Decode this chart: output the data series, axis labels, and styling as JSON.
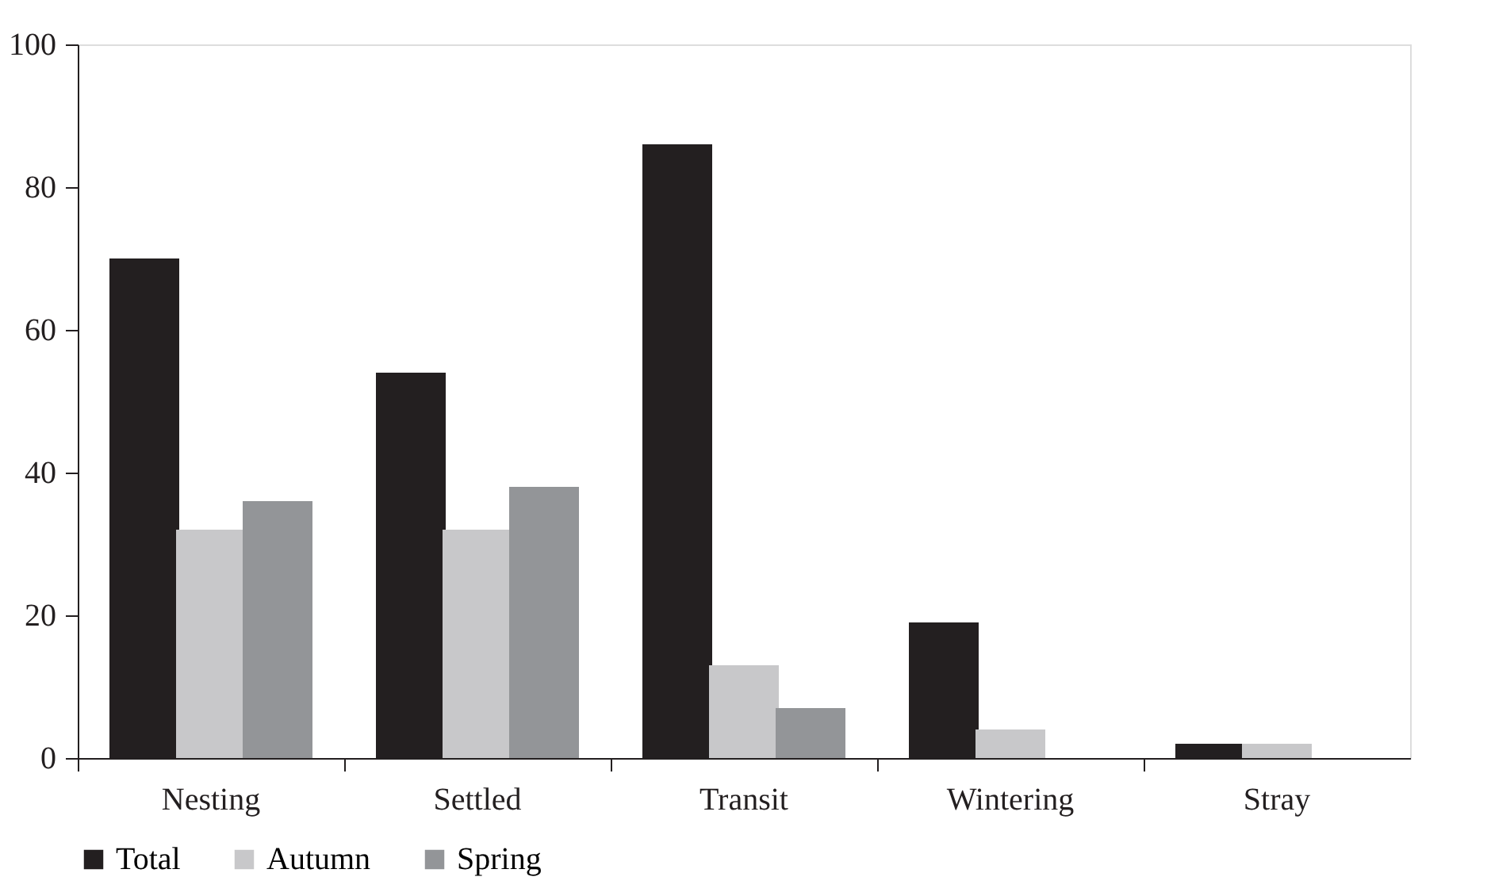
{
  "chart_data": {
    "type": "bar",
    "categories": [
      "Nesting",
      "Settled",
      "Transit",
      "Wintering",
      "Stray"
    ],
    "series": [
      {
        "name": "Total",
        "color": "#231f20",
        "values": [
          70,
          54,
          86,
          19,
          2
        ]
      },
      {
        "name": "Autumn",
        "color": "#c8c8ca",
        "values": [
          32,
          32,
          13,
          4,
          2
        ]
      },
      {
        "name": "Spring",
        "color": "#939598",
        "values": [
          36,
          38,
          7,
          0,
          0
        ]
      }
    ],
    "ylim": [
      0,
      100
    ],
    "yticks": [
      0,
      20,
      40,
      60,
      80,
      100
    ],
    "grid": false,
    "legend": "bottom"
  }
}
